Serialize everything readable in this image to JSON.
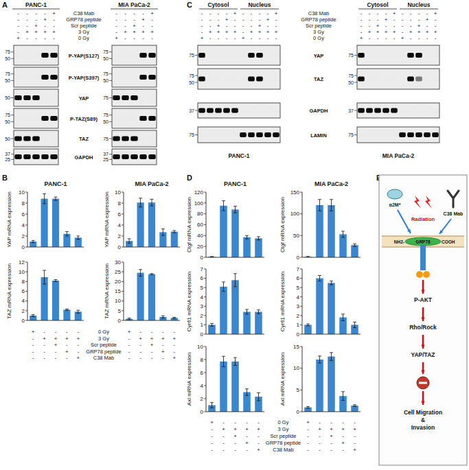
{
  "panel_labels": [
    "A",
    "B",
    "C",
    "D",
    "E"
  ],
  "blots_a": {
    "proteins": [
      "P-YAP(S127)",
      "P-YAP(S397)",
      "YAP",
      "P-TAZ(S89)",
      "TAZ",
      "GAPDH"
    ],
    "conditions": [
      {
        "label": "C38 Mab",
        "signs": [
          "-",
          "-",
          "-",
          "-",
          "+"
        ]
      },
      {
        "label": "GRP78 peptide",
        "signs": [
          "-",
          "-",
          "-",
          "+",
          "-"
        ]
      },
      {
        "label": "Scr peptide",
        "signs": [
          "-",
          "-",
          "+",
          "-",
          "-"
        ]
      },
      {
        "label": "3 Gy",
        "signs": [
          "-",
          "+",
          "+",
          "+",
          "+"
        ]
      },
      {
        "label": "0 Gy",
        "signs": [
          "+",
          "-",
          "-",
          "-",
          "-"
        ]
      }
    ],
    "cell_lines": [
      {
        "name": "PANC-1",
        "markers": [
          [
            75,
            50
          ],
          [
            75,
            50
          ],
          [
            50
          ],
          [
            75,
            50
          ],
          [
            50
          ],
          [
            37,
            25
          ]
        ],
        "bands": [
          [
            0,
            0,
            0,
            1,
            1
          ],
          [
            0,
            0,
            0,
            1,
            1
          ],
          [
            1,
            1,
            1,
            0,
            0
          ],
          [
            0,
            0,
            0,
            1,
            1
          ],
          [
            1,
            1,
            1,
            0,
            0
          ],
          [
            1,
            1,
            1,
            1,
            1
          ]
        ]
      },
      {
        "name": "MIA PaCa-2",
        "markers": [
          [
            75,
            50
          ],
          [
            75,
            50
          ],
          [
            75
          ],
          [
            75,
            50
          ],
          [
            75
          ],
          [
            37,
            25
          ]
        ],
        "bands": [
          [
            0,
            0,
            0,
            1,
            1
          ],
          [
            0,
            0,
            0,
            1,
            1
          ],
          [
            1,
            1,
            1,
            0,
            0
          ],
          [
            0,
            0,
            0,
            1,
            1
          ],
          [
            1,
            1,
            1,
            0,
            0
          ],
          [
            1,
            1,
            1,
            1,
            1
          ]
        ]
      }
    ]
  },
  "blots_c": {
    "compartments": [
      "Cytosol",
      "Nucleus"
    ],
    "proteins": [
      "YAP",
      "TAZ",
      "GAPDH",
      "LAMIN"
    ],
    "conditions": [
      {
        "label": "C38 Mab",
        "signs": [
          "-",
          "-",
          "-",
          "-",
          "+",
          "-",
          "-",
          "-",
          "-",
          "+"
        ]
      },
      {
        "label": "GRP78 peptide",
        "signs": [
          "-",
          "-",
          "-",
          "+",
          "-",
          "-",
          "-",
          "-",
          "+",
          "-"
        ]
      },
      {
        "label": "Scr peptide",
        "signs": [
          "-",
          "-",
          "+",
          "-",
          "-",
          "-",
          "-",
          "+",
          "-",
          "-"
        ]
      },
      {
        "label": "3 Gy",
        "signs": [
          "-",
          "+",
          "+",
          "+",
          "+",
          "-",
          "+",
          "+",
          "+",
          "+"
        ]
      },
      {
        "label": "0 Gy",
        "signs": [
          "+",
          "-",
          "-",
          "-",
          "-",
          "+",
          "-",
          "-",
          "-",
          "-"
        ]
      }
    ],
    "cell_lines": [
      {
        "name": "PANC-1",
        "markers": [
          [
            75
          ],
          [
            75,
            50
          ],
          [
            37
          ],
          [
            75
          ]
        ],
        "bands": [
          [
            1,
            0,
            0,
            0,
            0,
            0,
            1,
            1,
            0,
            0
          ],
          [
            1,
            0,
            0,
            0,
            0,
            0,
            1,
            1,
            0,
            0
          ],
          [
            1,
            1,
            1,
            1,
            1,
            0,
            0,
            0,
            0,
            0
          ],
          [
            0,
            0,
            0,
            0,
            0,
            1,
            1,
            1,
            1,
            1
          ]
        ]
      },
      {
        "name": "MIA PaCa-2",
        "markers": [
          [
            75
          ],
          [
            75,
            50
          ],
          [
            37
          ],
          [
            75
          ]
        ],
        "bands": [
          [
            1,
            0,
            0,
            0,
            0,
            0,
            1,
            1,
            0,
            0
          ],
          [
            1,
            0,
            0,
            0,
            0,
            0,
            1,
            0.5,
            0,
            0
          ],
          [
            1,
            1,
            1,
            1,
            1,
            0,
            0,
            0,
            0,
            0
          ],
          [
            0,
            0,
            0,
            0,
            0,
            1,
            1,
            1,
            1,
            1
          ]
        ]
      }
    ]
  },
  "chart_data": [
    {
      "type": "bar",
      "title": "PANC-1",
      "y_label": "YAP mRNA expression",
      "categories": [
        null,
        null,
        null,
        null,
        null
      ],
      "values": [
        1,
        8.8,
        8.8,
        2.4,
        1.7
      ],
      "errors": [
        0.2,
        0.9,
        0.3,
        0.4,
        0.3
      ],
      "color": "#3a87cf",
      "ylim": [
        0,
        10
      ],
      "yticks": [
        0,
        2,
        4,
        6,
        8,
        10
      ],
      "tick_labels": "y"
    },
    {
      "type": "bar",
      "title": "MIA PaCa-2",
      "y_label": "YAP mRNA expression",
      "categories": [
        null,
        null,
        null,
        null,
        null
      ],
      "values": [
        1.1,
        8.1,
        8.1,
        2.7,
        2.8
      ],
      "errors": [
        0.4,
        0.8,
        0.6,
        0.6,
        0.2
      ],
      "color": "#3a87cf",
      "ylim": [
        0,
        10
      ],
      "yticks": [
        0,
        2,
        4,
        6,
        8,
        10
      ],
      "tick_labels": "y"
    },
    {
      "type": "bar",
      "y_label": "TAZ mRNA expression",
      "categories": [
        null,
        null,
        null,
        null,
        null
      ],
      "values": [
        1,
        8.9,
        8.2,
        2.2,
        1.8
      ],
      "errors": [
        0.2,
        1.4,
        0.2,
        0.15,
        0.3
      ],
      "color": "#3a87cf",
      "ylim": [
        0,
        12
      ],
      "yticks": [
        0,
        2,
        4,
        6,
        8,
        10,
        12
      ],
      "tick_labels": "y"
    },
    {
      "type": "bar",
      "y_label": "TAZ mRNA expression",
      "categories": [
        null,
        null,
        null,
        null,
        null
      ],
      "values": [
        0.8,
        24.5,
        23.8,
        1.8,
        1.3
      ],
      "errors": [
        0.4,
        1.7,
        0.3,
        0.6,
        0.3
      ],
      "color": "#3a87cf",
      "ylim": [
        0,
        30
      ],
      "yticks": [
        0,
        5,
        10,
        15,
        20,
        25,
        30
      ],
      "tick_labels": "y"
    },
    {
      "type": "bar",
      "title": "PANC-1",
      "y_label": "Ctgf mRNA expression",
      "categories": [
        null,
        null,
        null,
        null,
        null
      ],
      "values": [
        1,
        95,
        88,
        37,
        35
      ],
      "errors": [
        0.5,
        9,
        6,
        3,
        3
      ],
      "color": "#3a87cf",
      "ylim": [
        0,
        120
      ],
      "yticks": [
        0,
        20,
        40,
        60,
        80,
        100,
        120
      ],
      "tick_labels": "y"
    },
    {
      "type": "bar",
      "title": "MIA PaCa-2",
      "y_label": "Ctgf mRNA expression",
      "categories": [
        null,
        null,
        null,
        null,
        null
      ],
      "values": [
        1,
        120,
        120,
        53,
        28
      ],
      "errors": [
        1,
        13,
        13,
        7,
        3
      ],
      "color": "#3a87cf",
      "ylim": [
        0,
        150
      ],
      "yticks": [
        0,
        50,
        100,
        150
      ],
      "tick_labels": "y"
    },
    {
      "type": "bar",
      "y_label": "Cyr61 mRNA expression",
      "categories": [
        null,
        null,
        null,
        null,
        null
      ],
      "values": [
        1,
        5.1,
        5.8,
        2.4,
        2.4
      ],
      "errors": [
        0.15,
        0.5,
        0.7,
        0.25,
        0.2
      ],
      "color": "#3a87cf",
      "ylim": [
        0,
        7
      ],
      "yticks": [
        0,
        1,
        2,
        3,
        4,
        5,
        6,
        7
      ],
      "tick_labels": "y"
    },
    {
      "type": "bar",
      "y_label": "Cyr61 mRNA expression",
      "categories": [
        null,
        null,
        null,
        null,
        null
      ],
      "values": [
        1,
        6,
        5.5,
        1.8,
        1
      ],
      "errors": [
        0.1,
        0.3,
        0.2,
        0.35,
        0.3
      ],
      "color": "#3a87cf",
      "ylim": [
        0,
        7
      ],
      "yticks": [
        0,
        1,
        2,
        3,
        4,
        5,
        6,
        7
      ],
      "tick_labels": "y"
    },
    {
      "type": "bar",
      "y_label": "Axl mRNA expression",
      "categories": [
        null,
        null,
        null,
        null,
        null
      ],
      "values": [
        1,
        7.7,
        7.7,
        3,
        2.3
      ],
      "errors": [
        0.4,
        0.8,
        0.6,
        0.5,
        0.6
      ],
      "color": "#3a87cf",
      "ylim": [
        0,
        10
      ],
      "yticks": [
        0,
        2,
        4,
        6,
        8,
        10
      ],
      "tick_labels": "y"
    },
    {
      "type": "bar",
      "y_label": "Axl mRNA expression",
      "categories": [
        null,
        null,
        null,
        null,
        null
      ],
      "values": [
        1,
        12,
        12.7,
        3.6,
        1.4
      ],
      "errors": [
        0.2,
        0.8,
        0.9,
        1,
        0.2
      ],
      "color": "#3a87cf",
      "ylim": [
        0,
        15
      ],
      "yticks": [
        0,
        5,
        10,
        15
      ],
      "tick_labels": "y"
    }
  ],
  "conditions_b": [
    {
      "label": "0 Gy",
      "signs": [
        "+",
        "-",
        "-",
        "-",
        "-"
      ]
    },
    {
      "label": "3 Gy",
      "signs": [
        "-",
        "+",
        "+",
        "+",
        "+"
      ]
    },
    {
      "label": "Scr peptide",
      "signs": [
        "-",
        "-",
        "+",
        "-",
        "-"
      ]
    },
    {
      "label": "GRP78 peptide",
      "signs": [
        "-",
        "-",
        "-",
        "+",
        "-"
      ]
    },
    {
      "label": "C38 Mab",
      "signs": [
        "-",
        "-",
        "-",
        "-",
        "+"
      ]
    }
  ],
  "conditions_d": [
    {
      "label": "0 Gy",
      "signs": [
        "+",
        "-",
        "-",
        "-",
        "-"
      ]
    },
    {
      "label": "3 Gy",
      "signs": [
        "-",
        "+",
        "+",
        "+",
        "+"
      ]
    },
    {
      "label": "Scr peptide",
      "signs": [
        "-",
        "-",
        "+",
        "-",
        "-"
      ]
    },
    {
      "label": "GRP78 peptide",
      "signs": [
        "-",
        "-",
        "-",
        "+",
        "-"
      ]
    },
    {
      "label": "C38 Mab",
      "signs": [
        "-",
        "-",
        "-",
        "-",
        "+"
      ]
    }
  ],
  "diagram": {
    "ligand": "α2M*",
    "stimulus": "Radiation",
    "antibody": "C38 Mab",
    "n_terminus": "NH2-",
    "receptor": "GRP78",
    "c_terminus": "COOH",
    "pathway": [
      "P-AKT",
      "Rho/Rock",
      "YAP/TAZ"
    ],
    "outcome": [
      "Cell Migration",
      "&",
      "Invasion"
    ]
  }
}
